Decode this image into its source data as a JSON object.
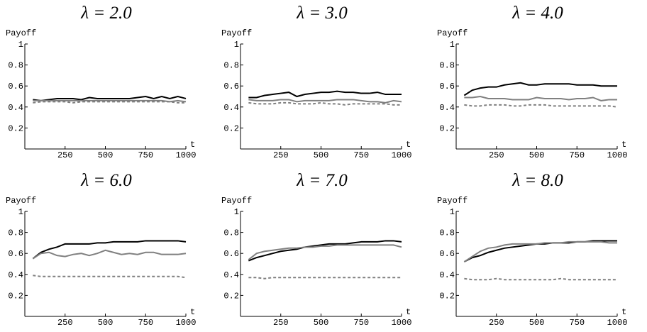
{
  "chart_data": [
    {
      "type": "line",
      "title": "λ = 2.0",
      "ylabel": "Payoff",
      "xlabel": "t",
      "x": [
        50,
        100,
        150,
        200,
        250,
        300,
        350,
        400,
        450,
        500,
        550,
        600,
        650,
        700,
        750,
        800,
        850,
        900,
        950,
        1000
      ],
      "xlim": [
        0,
        1000
      ],
      "xticks": [
        250,
        500,
        750,
        1000
      ],
      "ylim": [
        0,
        1
      ],
      "yticks": [
        0.2,
        0.4,
        0.6,
        0.8,
        1
      ],
      "series": [
        {
          "color": "#000000",
          "line_style": "solid",
          "values": [
            0.47,
            0.46,
            0.47,
            0.48,
            0.48,
            0.48,
            0.47,
            0.49,
            0.48,
            0.48,
            0.48,
            0.48,
            0.48,
            0.49,
            0.5,
            0.48,
            0.5,
            0.48,
            0.5,
            0.48
          ]
        },
        {
          "color": "#808080",
          "line_style": "solid",
          "values": [
            0.46,
            0.46,
            0.46,
            0.46,
            0.46,
            0.46,
            0.46,
            0.46,
            0.46,
            0.46,
            0.46,
            0.46,
            0.46,
            0.46,
            0.46,
            0.46,
            0.46,
            0.45,
            0.46,
            0.45
          ]
        },
        {
          "color": "#808080",
          "line_style": "dashed",
          "values": [
            0.44,
            0.45,
            0.45,
            0.45,
            0.45,
            0.44,
            0.45,
            0.45,
            0.45,
            0.45,
            0.45,
            0.45,
            0.45,
            0.45,
            0.45,
            0.45,
            0.45,
            0.45,
            0.44,
            0.44
          ]
        }
      ]
    },
    {
      "type": "line",
      "title": "λ = 3.0",
      "ylabel": "Payoff",
      "xlabel": "t",
      "x": [
        50,
        100,
        150,
        200,
        250,
        300,
        350,
        400,
        450,
        500,
        550,
        600,
        650,
        700,
        750,
        800,
        850,
        900,
        950,
        1000
      ],
      "xlim": [
        0,
        1000
      ],
      "xticks": [
        250,
        500,
        750,
        1000
      ],
      "ylim": [
        0,
        1
      ],
      "yticks": [
        0.2,
        0.4,
        0.6,
        0.8,
        1
      ],
      "series": [
        {
          "color": "#000000",
          "line_style": "solid",
          "values": [
            0.49,
            0.49,
            0.51,
            0.52,
            0.53,
            0.54,
            0.5,
            0.52,
            0.53,
            0.54,
            0.54,
            0.55,
            0.54,
            0.54,
            0.53,
            0.53,
            0.54,
            0.52,
            0.52,
            0.52
          ]
        },
        {
          "color": "#808080",
          "line_style": "solid",
          "values": [
            0.47,
            0.46,
            0.46,
            0.46,
            0.47,
            0.47,
            0.45,
            0.46,
            0.46,
            0.46,
            0.46,
            0.47,
            0.47,
            0.47,
            0.46,
            0.45,
            0.45,
            0.44,
            0.46,
            0.45
          ]
        },
        {
          "color": "#808080",
          "line_style": "dashed",
          "values": [
            0.44,
            0.43,
            0.43,
            0.43,
            0.44,
            0.44,
            0.43,
            0.43,
            0.43,
            0.44,
            0.43,
            0.43,
            0.42,
            0.43,
            0.43,
            0.43,
            0.43,
            0.43,
            0.42,
            0.42
          ]
        }
      ]
    },
    {
      "type": "line",
      "title": "λ = 4.0",
      "ylabel": "Payoff",
      "xlabel": "t",
      "x": [
        50,
        100,
        150,
        200,
        250,
        300,
        350,
        400,
        450,
        500,
        550,
        600,
        650,
        700,
        750,
        800,
        850,
        900,
        950,
        1000
      ],
      "xlim": [
        0,
        1000
      ],
      "xticks": [
        250,
        500,
        750,
        1000
      ],
      "ylim": [
        0,
        1
      ],
      "yticks": [
        0.2,
        0.4,
        0.6,
        0.8,
        1
      ],
      "series": [
        {
          "color": "#000000",
          "line_style": "solid",
          "values": [
            0.51,
            0.56,
            0.58,
            0.59,
            0.59,
            0.61,
            0.62,
            0.63,
            0.61,
            0.61,
            0.62,
            0.62,
            0.62,
            0.62,
            0.61,
            0.61,
            0.61,
            0.6,
            0.6,
            0.6
          ]
        },
        {
          "color": "#808080",
          "line_style": "solid",
          "values": [
            0.49,
            0.49,
            0.5,
            0.48,
            0.48,
            0.48,
            0.47,
            0.47,
            0.47,
            0.49,
            0.48,
            0.48,
            0.48,
            0.47,
            0.48,
            0.48,
            0.49,
            0.46,
            0.47,
            0.47
          ]
        },
        {
          "color": "#808080",
          "line_style": "dashed",
          "values": [
            0.42,
            0.41,
            0.41,
            0.42,
            0.42,
            0.42,
            0.41,
            0.41,
            0.42,
            0.42,
            0.42,
            0.41,
            0.41,
            0.41,
            0.41,
            0.41,
            0.41,
            0.41,
            0.41,
            0.4
          ]
        }
      ]
    },
    {
      "type": "line",
      "title": "λ = 6.0",
      "ylabel": "Payoff",
      "xlabel": "t",
      "x": [
        50,
        100,
        150,
        200,
        250,
        300,
        350,
        400,
        450,
        500,
        550,
        600,
        650,
        700,
        750,
        800,
        850,
        900,
        950,
        1000
      ],
      "xlim": [
        0,
        1000
      ],
      "xticks": [
        250,
        500,
        750,
        1000
      ],
      "ylim": [
        0,
        1
      ],
      "yticks": [
        0.2,
        0.4,
        0.6,
        0.8,
        1
      ],
      "series": [
        {
          "color": "#000000",
          "line_style": "solid",
          "values": [
            0.55,
            0.61,
            0.64,
            0.66,
            0.69,
            0.69,
            0.69,
            0.69,
            0.7,
            0.7,
            0.71,
            0.71,
            0.71,
            0.71,
            0.72,
            0.72,
            0.72,
            0.72,
            0.72,
            0.71
          ]
        },
        {
          "color": "#808080",
          "line_style": "solid",
          "values": [
            0.55,
            0.6,
            0.61,
            0.58,
            0.57,
            0.59,
            0.6,
            0.58,
            0.6,
            0.63,
            0.61,
            0.59,
            0.6,
            0.59,
            0.61,
            0.61,
            0.59,
            0.59,
            0.59,
            0.6
          ]
        },
        {
          "color": "#808080",
          "line_style": "dashed",
          "values": [
            0.39,
            0.38,
            0.38,
            0.38,
            0.38,
            0.38,
            0.38,
            0.38,
            0.38,
            0.38,
            0.38,
            0.38,
            0.38,
            0.38,
            0.38,
            0.38,
            0.38,
            0.38,
            0.38,
            0.37
          ]
        }
      ]
    },
    {
      "type": "line",
      "title": "λ = 7.0",
      "ylabel": "Payoff",
      "xlabel": "t",
      "x": [
        50,
        100,
        150,
        200,
        250,
        300,
        350,
        400,
        450,
        500,
        550,
        600,
        650,
        700,
        750,
        800,
        850,
        900,
        950,
        1000
      ],
      "xlim": [
        0,
        1000
      ],
      "xticks": [
        250,
        500,
        750,
        1000
      ],
      "ylim": [
        0,
        1
      ],
      "yticks": [
        0.2,
        0.4,
        0.6,
        0.8,
        1
      ],
      "series": [
        {
          "color": "#000000",
          "line_style": "solid",
          "values": [
            0.53,
            0.56,
            0.58,
            0.6,
            0.62,
            0.63,
            0.64,
            0.66,
            0.67,
            0.68,
            0.69,
            0.69,
            0.69,
            0.7,
            0.71,
            0.71,
            0.71,
            0.72,
            0.72,
            0.71
          ]
        },
        {
          "color": "#808080",
          "line_style": "solid",
          "values": [
            0.54,
            0.6,
            0.62,
            0.63,
            0.64,
            0.65,
            0.65,
            0.66,
            0.66,
            0.67,
            0.67,
            0.68,
            0.68,
            0.68,
            0.68,
            0.68,
            0.68,
            0.68,
            0.68,
            0.66
          ]
        },
        {
          "color": "#808080",
          "line_style": "dashed",
          "values": [
            0.37,
            0.37,
            0.36,
            0.37,
            0.37,
            0.37,
            0.37,
            0.37,
            0.37,
            0.37,
            0.37,
            0.37,
            0.37,
            0.37,
            0.37,
            0.37,
            0.37,
            0.37,
            0.37,
            0.37
          ]
        }
      ]
    },
    {
      "type": "line",
      "title": "λ = 8.0",
      "ylabel": "Payoff",
      "xlabel": "t",
      "x": [
        50,
        100,
        150,
        200,
        250,
        300,
        350,
        400,
        450,
        500,
        550,
        600,
        650,
        700,
        750,
        800,
        850,
        900,
        950,
        1000
      ],
      "xlim": [
        0,
        1000
      ],
      "xticks": [
        250,
        500,
        750,
        1000
      ],
      "ylim": [
        0,
        1
      ],
      "yticks": [
        0.2,
        0.4,
        0.6,
        0.8,
        1
      ],
      "series": [
        {
          "color": "#000000",
          "line_style": "solid",
          "values": [
            0.52,
            0.56,
            0.58,
            0.61,
            0.63,
            0.65,
            0.66,
            0.67,
            0.68,
            0.69,
            0.69,
            0.7,
            0.7,
            0.7,
            0.71,
            0.71,
            0.72,
            0.72,
            0.72,
            0.72
          ]
        },
        {
          "color": "#808080",
          "line_style": "solid",
          "values": [
            0.52,
            0.57,
            0.62,
            0.65,
            0.66,
            0.68,
            0.69,
            0.69,
            0.69,
            0.69,
            0.7,
            0.7,
            0.7,
            0.71,
            0.71,
            0.71,
            0.71,
            0.71,
            0.7,
            0.7
          ]
        },
        {
          "color": "#808080",
          "line_style": "dashed",
          "values": [
            0.36,
            0.35,
            0.35,
            0.35,
            0.36,
            0.35,
            0.35,
            0.35,
            0.35,
            0.35,
            0.35,
            0.35,
            0.36,
            0.35,
            0.35,
            0.35,
            0.35,
            0.35,
            0.35,
            0.35
          ]
        }
      ]
    }
  ]
}
